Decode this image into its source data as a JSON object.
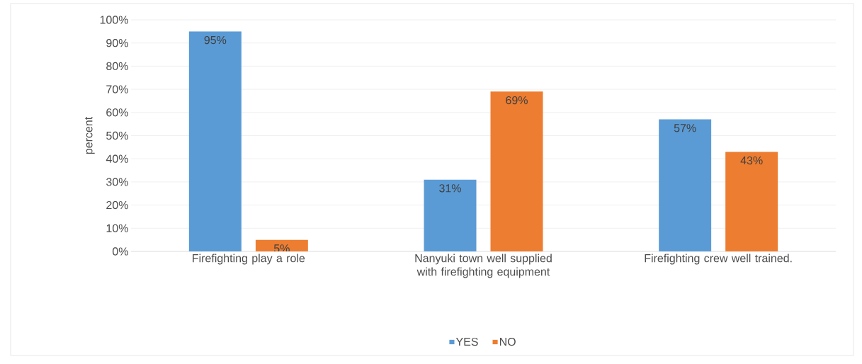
{
  "chart_data": {
    "type": "bar",
    "ylabel": "percent",
    "categories": [
      "Firefighting play a role",
      "Nanyuki town well supplied with firefighting equipment",
      "Firefighting crew well trained."
    ],
    "series": [
      {
        "name": "YES",
        "color": "#5b9bd5",
        "values": [
          95,
          31,
          57
        ],
        "value_labels": [
          "95%",
          "31%",
          "57%"
        ]
      },
      {
        "name": "NO",
        "color": "#ed7d31",
        "values": [
          5,
          69,
          43
        ],
        "value_labels": [
          "5%",
          "69%",
          "43%"
        ]
      }
    ],
    "ylim": [
      0,
      100
    ],
    "yticks": [
      {
        "value": 0,
        "label": "0%"
      },
      {
        "value": 10,
        "label": "10%"
      },
      {
        "value": 20,
        "label": "20%"
      },
      {
        "value": 30,
        "label": "30%"
      },
      {
        "value": 40,
        "label": "40%"
      },
      {
        "value": 50,
        "label": "50%"
      },
      {
        "value": 60,
        "label": "60%"
      },
      {
        "value": 70,
        "label": "70%"
      },
      {
        "value": 80,
        "label": "80%"
      },
      {
        "value": 90,
        "label": "90%"
      },
      {
        "value": 100,
        "label": "100%"
      }
    ],
    "grid": "y",
    "legend": "bottom"
  }
}
